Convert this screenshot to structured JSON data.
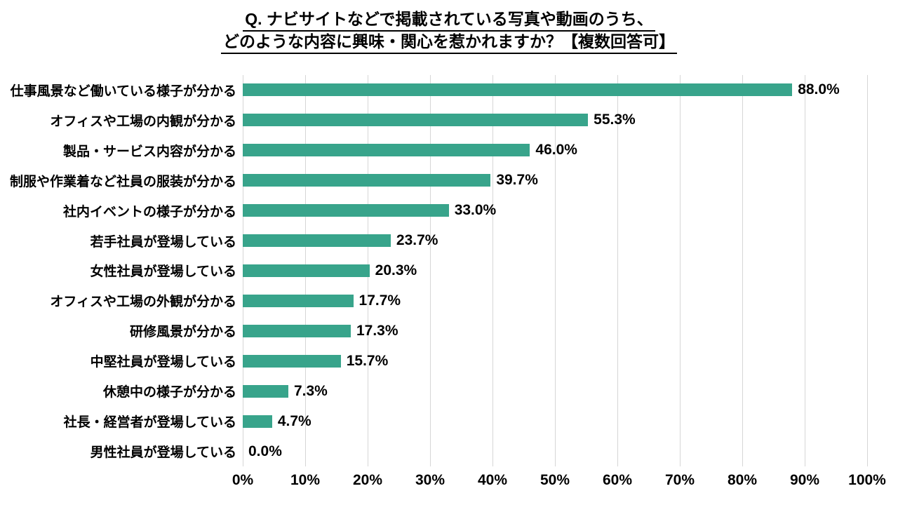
{
  "title": {
    "line1": "Q. ナビサイトなどで掲載されている写真や動画のうち、",
    "line2": "どのような内容に興味・関心を惹かれますか？【複数回答可】"
  },
  "chart_data": {
    "type": "bar",
    "orientation": "horizontal",
    "title": "Q. ナビサイトなどで掲載されている写真や動画のうち、どのような内容に興味・関心を惹かれますか？【複数回答可】",
    "categories": [
      "仕事風景など働いている様子が分かる",
      "オフィスや工場の内観が分かる",
      "製品・サービス内容が分かる",
      "制服や作業着など社員の服装が分かる",
      "社内イベントの様子が分かる",
      "若手社員が登場している",
      "女性社員が登場している",
      "オフィスや工場の外観が分かる",
      "研修風景が分かる",
      "中堅社員が登場している",
      "休憩中の様子が分かる",
      "社長・経営者が登場している",
      "男性社員が登場している"
    ],
    "values": [
      88.0,
      55.3,
      46.0,
      39.7,
      33.0,
      23.7,
      20.3,
      17.7,
      17.3,
      15.7,
      7.3,
      4.7,
      0.0
    ],
    "value_labels": [
      "88.0%",
      "55.3%",
      "46.0%",
      "39.7%",
      "33.0%",
      "23.7%",
      "20.3%",
      "17.7%",
      "17.3%",
      "15.7%",
      "7.3%",
      "4.7%",
      "0.0%"
    ],
    "x_ticks": [
      "0%",
      "10%",
      "20%",
      "30%",
      "40%",
      "50%",
      "60%",
      "70%",
      "80%",
      "90%",
      "100%"
    ],
    "xlim": [
      0,
      100
    ],
    "grid": true,
    "legend": "none",
    "colors": {
      "bar": "#38A48B",
      "gridline": "#D6D6D6",
      "text": "#000000",
      "background": "#FFFFFF"
    }
  }
}
